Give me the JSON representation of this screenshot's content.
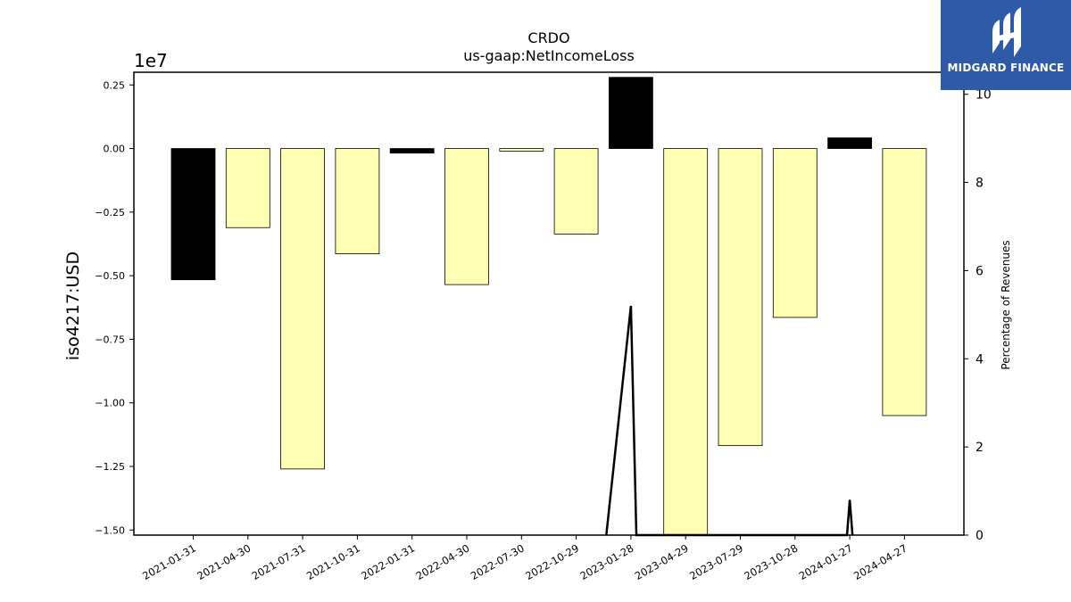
{
  "chart_data": {
    "type": "bar",
    "title": "CRDO",
    "subtitle": "us-gaap:NetIncomeLoss",
    "ylabel": "iso4217:USD",
    "y2label": "Percentage of Revenues",
    "offset_label": "1e7",
    "ylim": [
      -1.52,
      0.3
    ],
    "y2lim": [
      0,
      10.5
    ],
    "yticks": [
      -1.5,
      -1.25,
      -1.0,
      -0.75,
      -0.5,
      -0.25,
      0.0,
      0.25
    ],
    "ytick_labels": [
      "−1.50",
      "−1.25",
      "−1.00",
      "−0.75",
      "−0.50",
      "−0.25",
      "0.00",
      "0.25"
    ],
    "y2ticks": [
      0,
      2,
      4,
      6,
      8,
      10
    ],
    "y2tick_labels": [
      "0",
      "2",
      "4",
      "6",
      "8",
      "10"
    ],
    "categories": [
      "2021-01-31",
      "2021-04-30",
      "2021-07-31",
      "2021-10-31",
      "2022-01-31",
      "2022-04-30",
      "2022-07-30",
      "2022-10-29",
      "2023-01-28",
      "2023-04-29",
      "2023-07-29",
      "2023-10-28",
      "2024-01-27",
      "2024-04-27"
    ],
    "values": [
      -0.516,
      -0.311,
      -1.26,
      -0.414,
      -0.018,
      -0.535,
      -0.01,
      -0.336,
      0.28,
      -1.53,
      -1.168,
      -0.664,
      0.042,
      -1.05
    ],
    "bar_colors": [
      "#000000",
      "#ffffb3",
      "#ffffb3",
      "#ffffb3",
      "#000000",
      "#ffffb3",
      "#ffffb3",
      "#ffffb3",
      "#000000",
      "#ffffb3",
      "#ffffb3",
      "#ffffb3",
      "#000000",
      "#ffffb3"
    ],
    "line_series": {
      "x_index": [
        7.55,
        8.0,
        8.1,
        11.95,
        12.0,
        12.05
      ],
      "values": [
        0,
        5.2,
        0,
        0,
        0.8,
        0
      ],
      "color": "#000000"
    },
    "grid": false
  },
  "logo": {
    "text": "MIDGARD FINANCE",
    "background": "#2f5aa8"
  }
}
